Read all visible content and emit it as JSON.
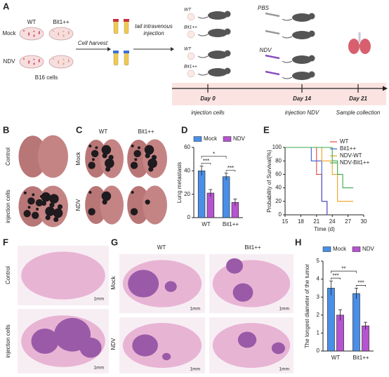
{
  "panel_letters": [
    "A",
    "B",
    "C",
    "D",
    "E",
    "F",
    "G",
    "H"
  ],
  "panel_a": {
    "mock": "Mock",
    "wt": "WT",
    "bit1": "Bit1++",
    "ndv": "NDV",
    "b16": "B16 cells",
    "harvest": "Cell harvest",
    "injection": [
      "tail intravenous",
      "injection"
    ],
    "mouse_labels": [
      "WT",
      "Bit1++",
      "WT",
      "Bit1++"
    ],
    "pbs": "PBS",
    "ndv_treat": "NDV",
    "days": [
      "Day 0",
      "Day 14",
      "Day 21"
    ],
    "events": [
      "injection cells",
      "injection NDV",
      "Sample collection"
    ]
  },
  "panel_b": {
    "rows": [
      "Control",
      "injection cells"
    ]
  },
  "panel_c": {
    "columns": [
      "WT",
      "Bit1++"
    ],
    "rows": [
      "Mock",
      "NDV"
    ]
  },
  "panel_f": {
    "rows": [
      "Control",
      "injection cells"
    ],
    "scale": [
      "1mm",
      "1mm"
    ]
  },
  "panel_g": {
    "columns": [
      "WT",
      "Bit1++"
    ],
    "rows": [
      "Mock",
      "NDV"
    ],
    "scale": [
      "1mm",
      "1mm",
      "1mm",
      "1mm"
    ]
  },
  "chart_data": [
    {
      "type": "bar",
      "ylabel": "Lung metastasis",
      "categories": [
        "WT",
        "Bit1++"
      ],
      "series": [
        {
          "name": "Mock",
          "color": "#4a8fe7",
          "values": [
            40,
            35
          ],
          "errors": [
            4,
            3
          ]
        },
        {
          "name": "NDV",
          "color": "#b553d0",
          "values": [
            21,
            13
          ],
          "errors": [
            3,
            3
          ]
        }
      ],
      "ylim": [
        0,
        60
      ],
      "yticks": [
        0,
        20,
        40,
        60
      ],
      "annotations": [
        "***",
        "***",
        "*"
      ]
    },
    {
      "type": "line",
      "ylabel": "Probability of Survival(%)",
      "xlabel": "Time (d)",
      "series": [
        {
          "name": "WT",
          "color": "#e8453c",
          "x": [
            15,
            21,
            22,
            23
          ],
          "values": [
            100,
            60,
            20,
            0
          ]
        },
        {
          "name": "Bit1++",
          "color": "#3b5bd6",
          "x": [
            15,
            20,
            22,
            23
          ],
          "values": [
            100,
            80,
            20,
            0
          ]
        },
        {
          "name": "NDV-WT",
          "color": "#f0a020",
          "x": [
            15,
            22,
            24,
            25,
            28
          ],
          "values": [
            100,
            80,
            60,
            20,
            20
          ]
        },
        {
          "name": "NDV-Bit1++",
          "color": "#3aa84a",
          "x": [
            15,
            24,
            25,
            26,
            28
          ],
          "values": [
            100,
            80,
            60,
            40,
            40
          ]
        }
      ],
      "xlim": [
        15,
        30
      ],
      "xticks": [
        15,
        18,
        21,
        24,
        27,
        30
      ],
      "ylim": [
        0,
        100
      ],
      "yticks": [
        0,
        20,
        40,
        60,
        80,
        100
      ]
    },
    {
      "type": "bar",
      "ylabel": "The longest diameter of the tumor",
      "categories": [
        "WT",
        "Bit1++"
      ],
      "series": [
        {
          "name": "Mock",
          "color": "#4a8fe7",
          "values": [
            3.5,
            3.2
          ],
          "errors": [
            0.4,
            0.3
          ]
        },
        {
          "name": "NDV",
          "color": "#b553d0",
          "values": [
            2.0,
            1.4
          ],
          "errors": [
            0.3,
            0.2
          ]
        }
      ],
      "ylim": [
        0,
        5
      ],
      "yticks": [
        0,
        1,
        2,
        3,
        4,
        5
      ],
      "annotations": [
        "***",
        "***",
        "**"
      ]
    }
  ]
}
